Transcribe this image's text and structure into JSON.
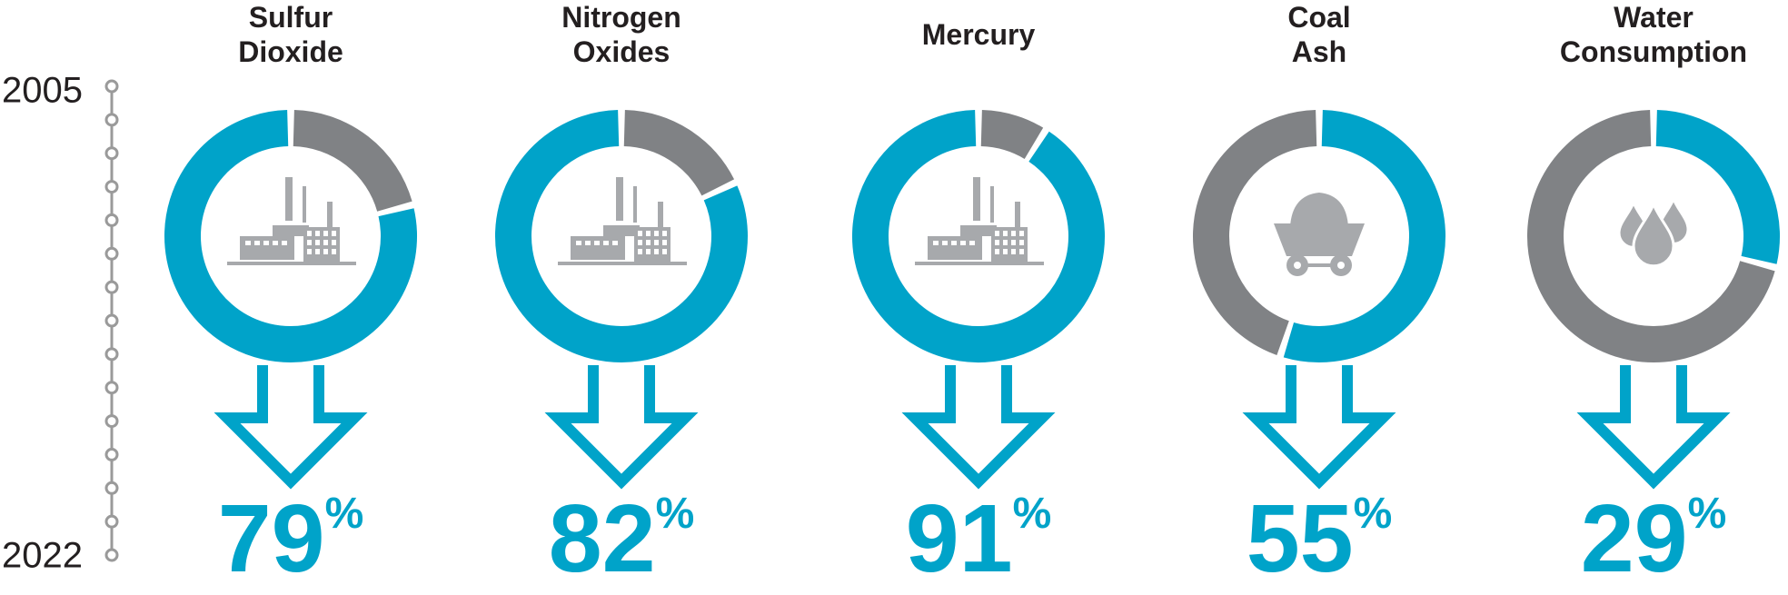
{
  "timeline": {
    "start": "2005",
    "end": "2022"
  },
  "chart_data": [
    {
      "type": "pie",
      "title": "Sulfur Dioxide",
      "values": [
        79
      ],
      "value_labels": [
        "79%"
      ],
      "color": "#00a3c9",
      "rest_color": "#808285",
      "direction": "counterclockwise"
    },
    {
      "type": "pie",
      "title": "Nitrogen Oxides",
      "values": [
        82
      ],
      "value_labels": [
        "82%"
      ],
      "color": "#00a3c9",
      "rest_color": "#808285",
      "direction": "counterclockwise"
    },
    {
      "type": "pie",
      "title": "Mercury",
      "values": [
        91
      ],
      "value_labels": [
        "91%"
      ],
      "color": "#00a3c9",
      "rest_color": "#808285",
      "direction": "counterclockwise"
    },
    {
      "type": "pie",
      "title": "Coal Ash",
      "values": [
        55
      ],
      "value_labels": [
        "55%"
      ],
      "color": "#00a3c9",
      "rest_color": "#808285",
      "direction": "clockwise"
    },
    {
      "type": "pie",
      "title": "Water Consumption",
      "values": [
        29
      ],
      "value_labels": [
        "29%"
      ],
      "color": "#00a3c9",
      "rest_color": "#808285",
      "direction": "clockwise"
    }
  ]
}
